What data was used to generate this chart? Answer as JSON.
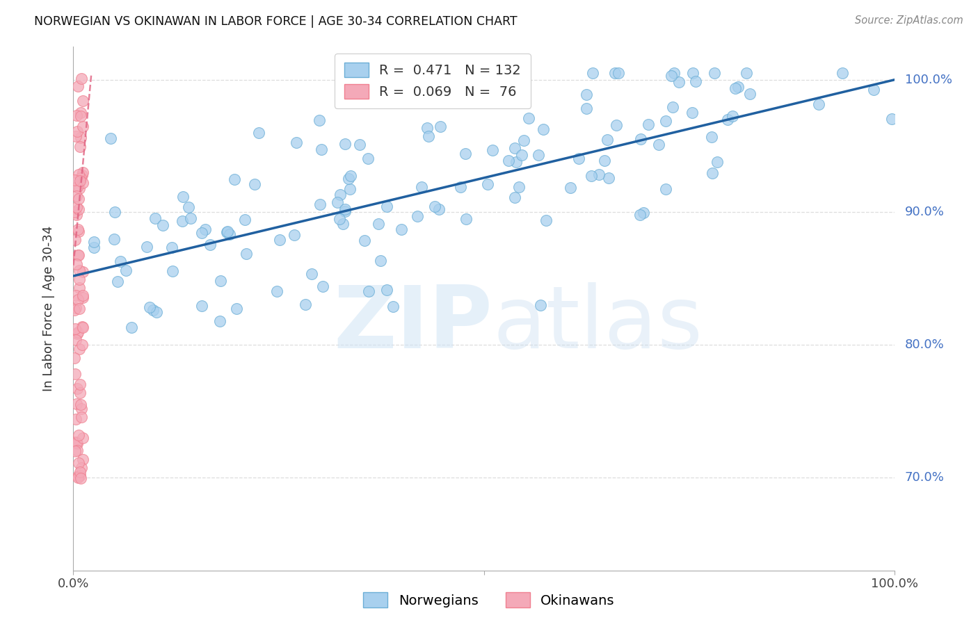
{
  "title": "NORWEGIAN VS OKINAWAN IN LABOR FORCE | AGE 30-34 CORRELATION CHART",
  "source": "Source: ZipAtlas.com",
  "ylabel": "In Labor Force | Age 30-34",
  "y_ticks": [
    0.7,
    0.8,
    0.9,
    1.0
  ],
  "y_tick_labels": [
    "70.0%",
    "80.0%",
    "90.0%",
    "100.0%"
  ],
  "blue_R": 0.471,
  "blue_N": 132,
  "pink_R": 0.069,
  "pink_N": 76,
  "blue_color": "#a8d0ee",
  "pink_color": "#f4a9b8",
  "blue_edge_color": "#6baed6",
  "pink_edge_color": "#f08090",
  "blue_line_color": "#2060a0",
  "pink_line_color": "#e06080",
  "watermark_zip": "ZIP",
  "watermark_atlas": "atlas",
  "legend_label_blue": "Norwegians",
  "legend_label_pink": "Okinawans",
  "legend_R_blue_color": "#1060c0",
  "legend_N_blue_color": "#10a030",
  "legend_R_pink_color": "#e04060",
  "legend_N_pink_color": "#10a030",
  "ylim_min": 0.63,
  "ylim_max": 1.025,
  "xlim_min": 0.0,
  "xlim_max": 1.0,
  "blue_line_x0": 0.0,
  "blue_line_x1": 1.0,
  "blue_line_y0": 0.852,
  "blue_line_y1": 1.0,
  "pink_line_x0": 0.0,
  "pink_line_x1": 0.022,
  "pink_line_y0": 0.86,
  "pink_line_y1": 1.005
}
